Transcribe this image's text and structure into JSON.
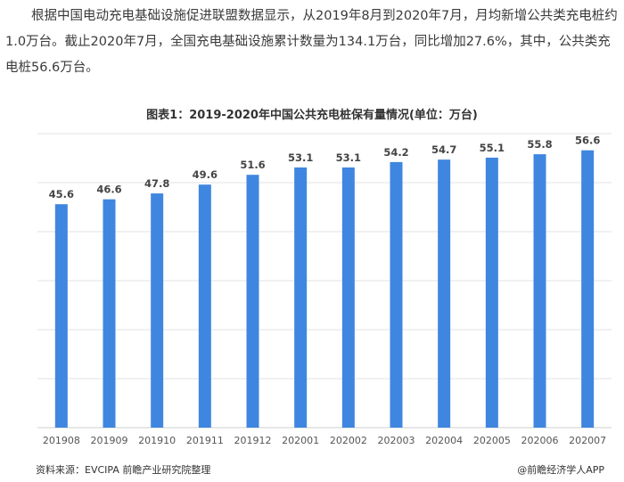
{
  "article": {
    "paragraph": "根据中国电动充电基础设施促进联盟数据显示，从2019年8月到2020年7月，月均新增公共类充电桩约1.0万台。截止2020年7月，全国充电基础设施累计数量为134.1万台，同比增加27.6%，其中，公共类充电桩56.6万台。"
  },
  "chart_data": {
    "type": "bar",
    "title": "图表1：2019-2020年中国公共充电桩保有量情况(单位：万台)",
    "categories": [
      "201908",
      "201909",
      "201910",
      "201911",
      "201912",
      "202001",
      "202002",
      "202003",
      "202004",
      "202005",
      "202006",
      "202007"
    ],
    "values": [
      45.6,
      46.6,
      47.8,
      49.6,
      51.6,
      53.1,
      53.1,
      54.2,
      54.7,
      55.1,
      55.8,
      56.6
    ],
    "ylim": [
      0,
      60
    ],
    "grid": true,
    "bar_color": "#3f86e0",
    "xlabel": "",
    "ylabel": ""
  },
  "footer": {
    "source": "资料来源：EVCIPA 前瞻产业研究院整理",
    "brand": "@前瞻经济学人APP"
  }
}
